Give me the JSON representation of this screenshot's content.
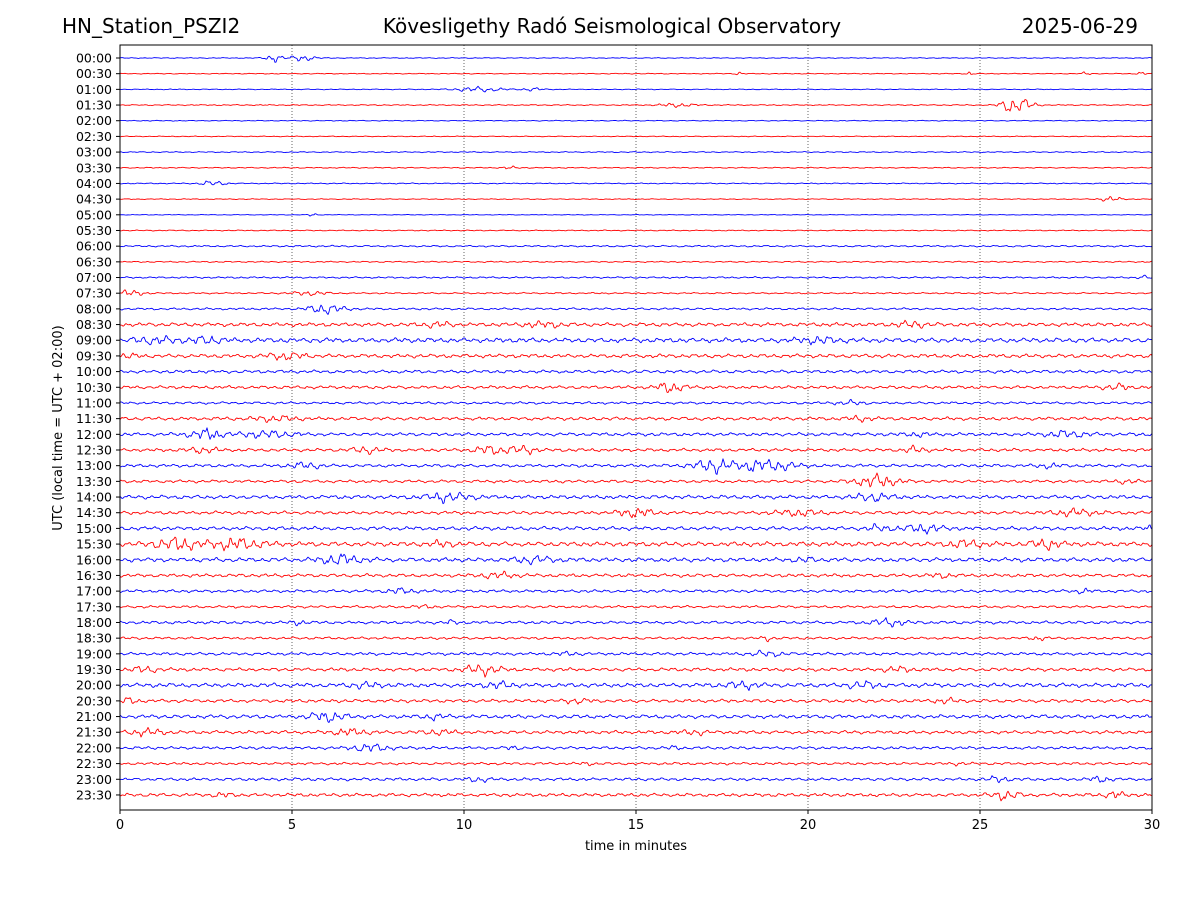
{
  "header": {
    "station": "HN_Station_PSZI2",
    "observatory": "Kövesligethy Radó Seismological Observatory",
    "date": "2025-06-29"
  },
  "chart_data": {
    "type": "line",
    "title": "Kövesligethy Radó Seismological Observatory",
    "xlabel": "time in minutes",
    "ylabel": "UTC (local time = UTC + 02:00)",
    "xlim": [
      0,
      30
    ],
    "xticks": [
      0,
      5,
      10,
      15,
      20,
      25,
      30
    ],
    "grid_x": true,
    "rows": [
      "00:00",
      "00:30",
      "01:00",
      "01:30",
      "02:00",
      "02:30",
      "03:00",
      "03:30",
      "04:00",
      "04:30",
      "05:00",
      "05:30",
      "06:00",
      "06:30",
      "07:00",
      "07:30",
      "08:00",
      "08:30",
      "09:00",
      "09:30",
      "10:00",
      "10:30",
      "11:00",
      "11:30",
      "12:00",
      "12:30",
      "13:00",
      "13:30",
      "14:00",
      "14:30",
      "15:00",
      "15:30",
      "16:00",
      "16:30",
      "17:00",
      "17:30",
      "18:00",
      "18:30",
      "19:00",
      "19:30",
      "20:00",
      "20:30",
      "21:00",
      "21:30",
      "22:00",
      "22:30",
      "23:00",
      "23:30"
    ],
    "colors": [
      "#0000ff",
      "#ff0000"
    ],
    "noise": [
      0.4,
      0.4,
      0.4,
      0.5,
      0.4,
      0.4,
      0.5,
      0.5,
      0.5,
      0.4,
      0.3,
      0.5,
      0.8,
      0.6,
      0.8,
      0.7,
      1.0,
      1.8,
      2.2,
      1.8,
      1.5,
      1.5,
      1.2,
      1.6,
      1.6,
      1.5,
      1.5,
      1.4,
      1.8,
      1.6,
      1.8,
      2.2,
      2.0,
      1.6,
      1.4,
      1.2,
      1.4,
      1.2,
      1.4,
      1.6,
      2.0,
      1.6,
      1.8,
      1.6,
      1.4,
      1.2,
      1.4,
      1.6
    ],
    "events": [
      [
        [
          4.5,
          0.25,
          4
        ],
        [
          5.3,
          0.35,
          3.5
        ]
      ],
      [
        [
          18,
          0.1,
          2
        ],
        [
          24.7,
          0.1,
          2
        ],
        [
          28.1,
          0.1,
          2.5
        ],
        [
          29.7,
          0.1,
          3
        ]
      ],
      [
        [
          10.4,
          0.7,
          2.5
        ],
        [
          12,
          0.3,
          1.5
        ]
      ],
      [
        [
          16.2,
          0.5,
          2
        ],
        [
          25.9,
          0.3,
          7
        ],
        [
          26.3,
          0.3,
          5
        ]
      ],
      [],
      [],
      [],
      [
        [
          11.3,
          0.2,
          1.5
        ]
      ],
      [
        [
          2.7,
          0.35,
          2.5
        ]
      ],
      [
        [
          28.8,
          0.3,
          2.5
        ]
      ],
      [
        [
          5.6,
          0.1,
          3
        ]
      ],
      [],
      [],
      [],
      [
        [
          29.8,
          0.2,
          2
        ]
      ],
      [
        [
          0.3,
          0.4,
          3
        ],
        [
          5.5,
          0.5,
          2
        ]
      ],
      [
        [
          6,
          0.5,
          5
        ]
      ],
      [
        [
          9.2,
          0.4,
          2.5
        ],
        [
          12.3,
          0.5,
          2.5
        ],
        [
          23,
          0.4,
          3
        ]
      ],
      [
        [
          1,
          0.6,
          3
        ],
        [
          2.5,
          0.4,
          3.5
        ],
        [
          20.3,
          0.6,
          2.5
        ]
      ],
      [
        [
          0.2,
          0.2,
          3
        ],
        [
          4.8,
          0.5,
          3.5
        ]
      ],
      [],
      [
        [
          16,
          0.4,
          5
        ],
        [
          29,
          0.4,
          2.5
        ]
      ],
      [
        [
          21.2,
          0.4,
          2
        ]
      ],
      [
        [
          4.5,
          0.6,
          2.5
        ],
        [
          21.5,
          0.3,
          2.5
        ]
      ],
      [
        [
          2.5,
          0.5,
          5
        ],
        [
          4.3,
          0.8,
          3
        ],
        [
          23.2,
          0.3,
          2
        ],
        [
          27.5,
          0.6,
          3
        ]
      ],
      [
        [
          2.4,
          0.4,
          3
        ],
        [
          7.2,
          0.4,
          3
        ],
        [
          10.8,
          0.5,
          4
        ],
        [
          11.7,
          0.4,
          4
        ],
        [
          23.1,
          0.3,
          3
        ]
      ],
      [
        [
          5.4,
          0.4,
          3.5
        ],
        [
          17.3,
          0.6,
          7
        ],
        [
          18.5,
          0.4,
          6
        ],
        [
          19.2,
          0.5,
          4
        ],
        [
          27,
          0.3,
          2
        ]
      ],
      [
        [
          22,
          0.6,
          6
        ],
        [
          29.3,
          0.3,
          2
        ]
      ],
      [
        [
          9.5,
          0.7,
          4
        ],
        [
          21.9,
          0.5,
          4
        ]
      ],
      [
        [
          15,
          0.5,
          4
        ],
        [
          19.7,
          0.6,
          3
        ],
        [
          27.8,
          0.6,
          3.5
        ]
      ],
      [
        [
          22,
          0.3,
          3
        ],
        [
          23.3,
          0.6,
          4
        ],
        [
          29.9,
          0.1,
          3
        ]
      ],
      [
        [
          1.6,
          0.6,
          6
        ],
        [
          3.4,
          0.8,
          5
        ],
        [
          9.4,
          0.3,
          3
        ],
        [
          24.6,
          0.5,
          3.5
        ],
        [
          26.9,
          0.4,
          4
        ]
      ],
      [
        [
          6.4,
          0.6,
          5
        ],
        [
          12,
          0.6,
          3
        ],
        [
          19.9,
          0.3,
          2
        ]
      ],
      [
        [
          11,
          0.5,
          2.5
        ],
        [
          23.9,
          0.3,
          2
        ]
      ],
      [
        [
          8.2,
          0.4,
          2.5
        ],
        [
          28,
          0.2,
          2
        ]
      ],
      [
        [
          8.8,
          0.3,
          1.5
        ]
      ],
      [
        [
          5.2,
          0.2,
          2
        ],
        [
          9.6,
          0.2,
          2
        ],
        [
          22.3,
          0.5,
          3.5
        ]
      ],
      [
        [
          18.8,
          0.2,
          2
        ],
        [
          26.7,
          0.2,
          2
        ]
      ],
      [
        [
          13,
          0.3,
          1.5
        ],
        [
          18.8,
          0.4,
          2.5
        ]
      ],
      [
        [
          0.7,
          0.4,
          2.5
        ],
        [
          10.5,
          0.5,
          5
        ],
        [
          22.6,
          0.4,
          2.5
        ]
      ],
      [
        [
          7.1,
          0.4,
          2.5
        ],
        [
          11,
          0.4,
          3
        ],
        [
          18.1,
          0.5,
          3
        ],
        [
          21.6,
          0.4,
          3
        ]
      ],
      [
        [
          0.3,
          0.2,
          3
        ],
        [
          13.3,
          0.4,
          2
        ],
        [
          24,
          0.3,
          2
        ]
      ],
      [
        [
          6,
          0.5,
          4.5
        ],
        [
          9.1,
          0.3,
          2.5
        ]
      ],
      [
        [
          0.8,
          0.5,
          3
        ],
        [
          6.7,
          0.5,
          3
        ],
        [
          9.3,
          0.4,
          3
        ],
        [
          16.7,
          0.3,
          2.5
        ]
      ],
      [
        [
          7.3,
          0.5,
          4
        ],
        [
          11.4,
          0.2,
          1.5
        ],
        [
          16.1,
          0.2,
          1.5
        ]
      ],
      [
        [
          13.6,
          0.2,
          1.5
        ],
        [
          24.4,
          0.2,
          1.5
        ]
      ],
      [
        [
          10.4,
          0.3,
          2.5
        ],
        [
          25.5,
          0.3,
          2.5
        ],
        [
          28.5,
          0.3,
          2.5
        ]
      ],
      [
        [
          3,
          0.3,
          2
        ],
        [
          25.7,
          0.4,
          4
        ],
        [
          28.9,
          0.3,
          3
        ]
      ]
    ]
  }
}
